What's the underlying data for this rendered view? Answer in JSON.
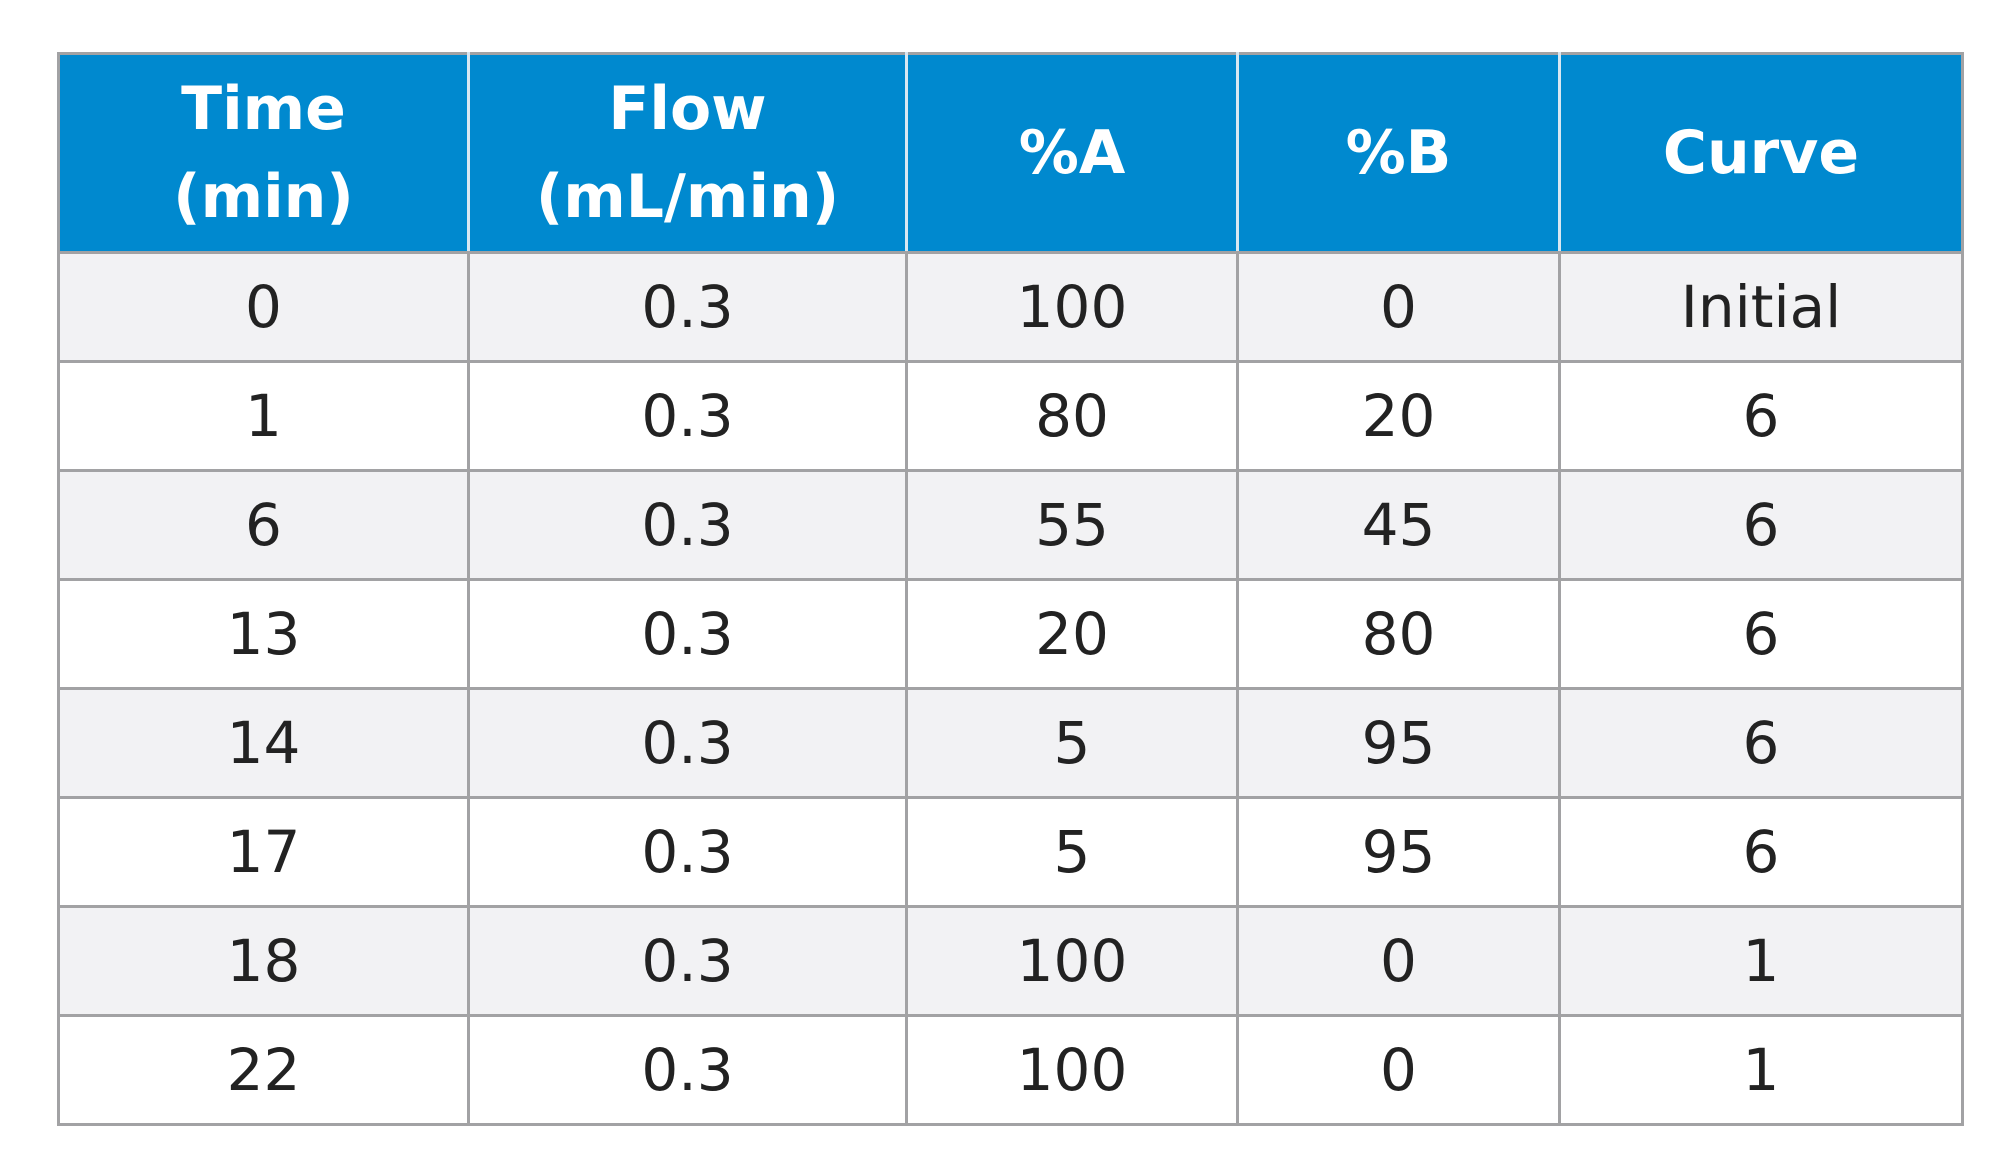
{
  "chart_data": {
    "type": "table",
    "columns": [
      {
        "line1": "Time",
        "line2": "(min)"
      },
      {
        "line1": "Flow",
        "line2": "(mL/min)"
      },
      {
        "line1": "%A",
        "line2": ""
      },
      {
        "line1": "%B",
        "line2": ""
      },
      {
        "line1": "Curve",
        "line2": ""
      }
    ],
    "rows": [
      [
        "0",
        "0.3",
        "100",
        "0",
        "Initial"
      ],
      [
        "1",
        "0.3",
        "80",
        "20",
        "6"
      ],
      [
        "6",
        "0.3",
        "55",
        "45",
        "6"
      ],
      [
        "13",
        "0.3",
        "20",
        "80",
        "6"
      ],
      [
        "14",
        "0.3",
        "5",
        "95",
        "6"
      ],
      [
        "17",
        "0.3",
        "5",
        "95",
        "6"
      ],
      [
        "18",
        "0.3",
        "100",
        "0",
        "1"
      ],
      [
        "22",
        "0.3",
        "100",
        "0",
        "1"
      ]
    ]
  },
  "colors": {
    "header_background": "#0089cf",
    "header_text": "#ffffff",
    "odd_row_background": "#f2f2f4",
    "even_row_background": "#ffffff",
    "border": "#a2a2a4",
    "body_text": "#222222"
  }
}
